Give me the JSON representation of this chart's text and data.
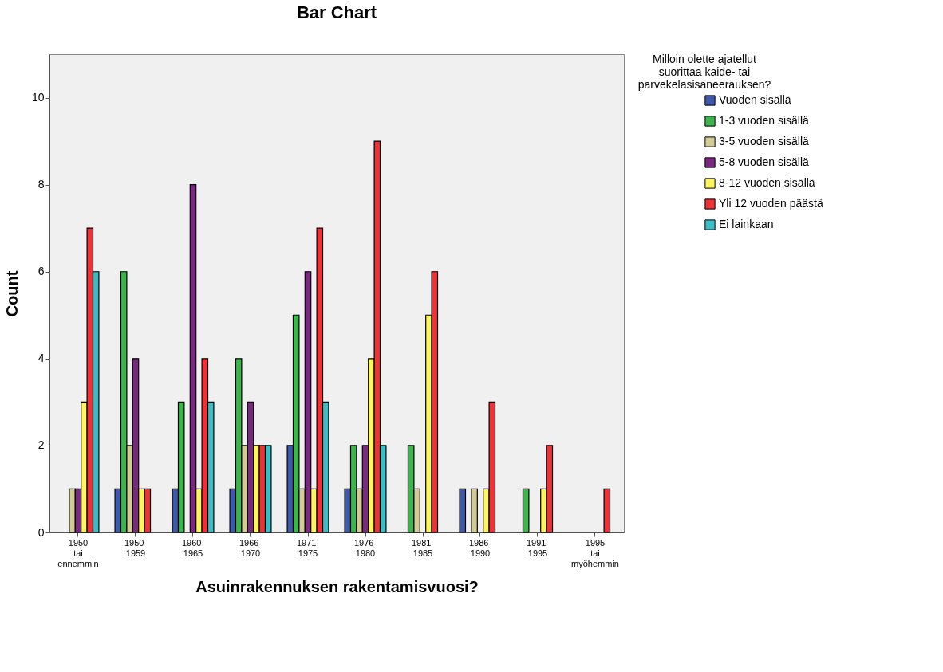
{
  "chart_data": {
    "type": "bar",
    "title": "Bar Chart",
    "xlabel": "Asuinrakennuksen rakentamisvuosi?",
    "ylabel": "Count",
    "legend_title": "Milloin olette ajatellut suorittaa kaide- tai parvekelasisaneerauksen?",
    "categories": [
      "1950 tai ennemmin",
      "1950-1959",
      "1960-1965",
      "1966-1970",
      "1971-1975",
      "1976-1980",
      "1981-1985",
      "1986-1990",
      "1991-1995",
      "1995 tai myöhemmin"
    ],
    "series": [
      {
        "name": "Vuoden sisällä",
        "color": "#3e58ac",
        "values": [
          0,
          1,
          1,
          1,
          2,
          1,
          0,
          1,
          0,
          0
        ]
      },
      {
        "name": "1-3 vuoden sisällä",
        "color": "#3cb64a",
        "values": [
          0,
          6,
          3,
          4,
          5,
          2,
          2,
          0,
          1,
          0
        ]
      },
      {
        "name": "3-5 vuoden sisällä",
        "color": "#d2cc94",
        "values": [
          1,
          2,
          0,
          2,
          1,
          1,
          1,
          1,
          0,
          0
        ]
      },
      {
        "name": "5-8 vuoden sisällä",
        "color": "#7a2882",
        "values": [
          1,
          4,
          8,
          3,
          6,
          2,
          0,
          0,
          0,
          0
        ]
      },
      {
        "name": "8-12 vuoden sisällä",
        "color": "#fcf55e",
        "values": [
          3,
          1,
          1,
          2,
          1,
          4,
          5,
          1,
          1,
          0
        ]
      },
      {
        "name": "Yli 12 vuoden päästä",
        "color": "#ee3338",
        "values": [
          7,
          1,
          4,
          2,
          7,
          9,
          6,
          3,
          2,
          1
        ]
      },
      {
        "name": "Ei lainkaan",
        "color": "#3cbcc4",
        "values": [
          6,
          0,
          3,
          2,
          3,
          2,
          0,
          0,
          0,
          0
        ]
      }
    ],
    "ylim": [
      0,
      11
    ],
    "yticks": [
      0,
      2,
      4,
      6,
      8,
      10
    ],
    "grid": false,
    "legend": "top right"
  }
}
